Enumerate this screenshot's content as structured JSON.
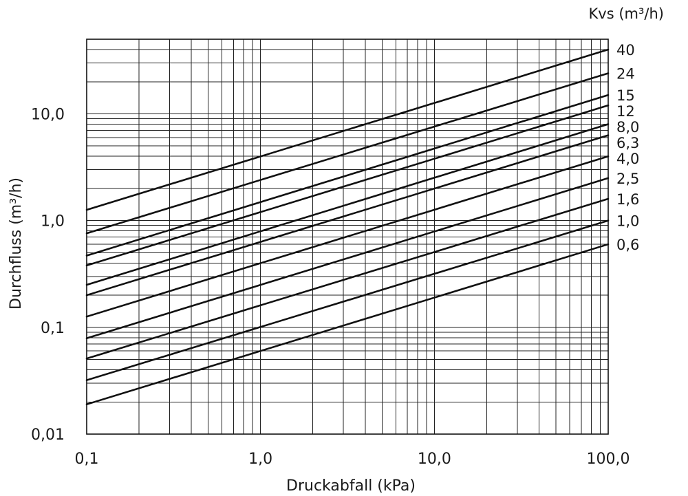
{
  "chart_data": {
    "type": "line",
    "scale": "log-log",
    "title": "",
    "xlabel": "Druckabfall (kPa)",
    "ylabel": "Durchfluss (m³/h)",
    "legend_title": "Kvs (m³/h)",
    "legend_placement": "right",
    "grid": true,
    "xlim": [
      0.1,
      100
    ],
    "ylim": [
      0.01,
      50
    ],
    "x_tick_values": [
      0.1,
      1,
      10,
      100
    ],
    "x_tick_labels": [
      "0,1",
      "1,0",
      "10,0",
      "100,0"
    ],
    "y_tick_values": [
      0.01,
      0.1,
      1,
      10
    ],
    "y_tick_labels": [
      "0,01",
      "0,1",
      "1,0",
      "10,0"
    ],
    "x": [
      0.1,
      100
    ],
    "series": [
      {
        "name": "40",
        "kvs": 40,
        "values": [
          1.26,
          40.0
        ]
      },
      {
        "name": "24",
        "kvs": 24,
        "values": [
          0.76,
          24.0
        ]
      },
      {
        "name": "15",
        "kvs": 15,
        "values": [
          0.47,
          15.0
        ]
      },
      {
        "name": "12",
        "kvs": 12,
        "values": [
          0.38,
          12.0
        ]
      },
      {
        "name": "8,0",
        "kvs": 8.0,
        "values": [
          0.25,
          8.0
        ]
      },
      {
        "name": "6,3",
        "kvs": 6.3,
        "values": [
          0.2,
          6.3
        ]
      },
      {
        "name": "4,0",
        "kvs": 4.0,
        "values": [
          0.126,
          4.0
        ]
      },
      {
        "name": "2,5",
        "kvs": 2.5,
        "values": [
          0.079,
          2.5
        ]
      },
      {
        "name": "1,6",
        "kvs": 1.6,
        "values": [
          0.051,
          1.6
        ]
      },
      {
        "name": "1,0",
        "kvs": 1.0,
        "values": [
          0.032,
          1.0
        ]
      },
      {
        "name": "0,6",
        "kvs": 0.6,
        "values": [
          0.019,
          0.6
        ]
      }
    ]
  }
}
